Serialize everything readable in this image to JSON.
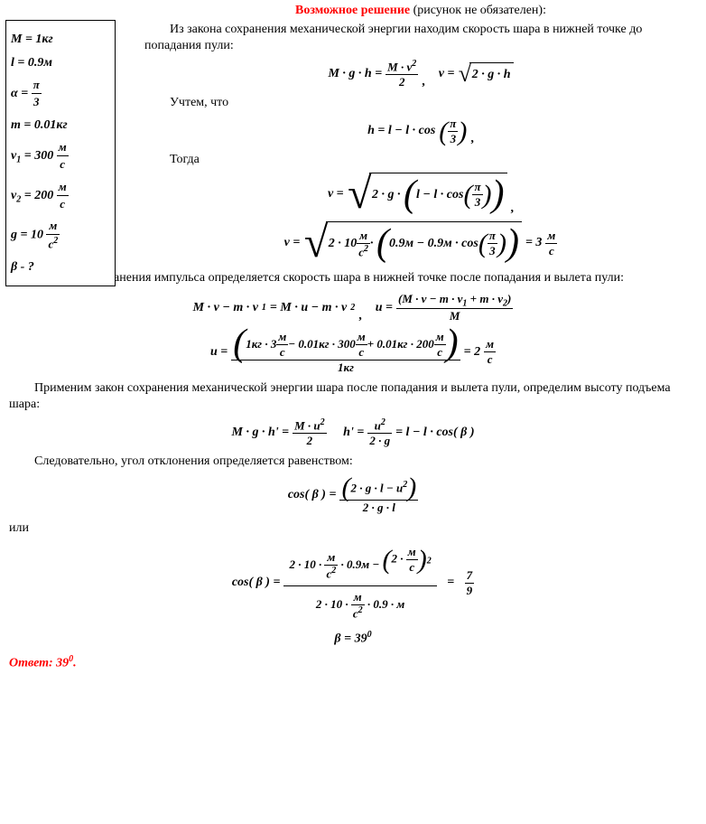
{
  "title": {
    "red": "Возможное решение",
    "rest": " (рисунок не обязателен):"
  },
  "given": {
    "M": "M = 1кг",
    "l": "l = 0.9м",
    "alpha_lhs": "α =",
    "alpha_num": "π",
    "alpha_den": "3",
    "m": "m = 0.01кг",
    "v1_lhs": "v",
    "v1_sub": "1",
    "v1_eq": " = 300 ",
    "v1_num": "м",
    "v1_den": "с",
    "v2_lhs": "v",
    "v2_sub": "2",
    "v2_eq": " = 200 ",
    "v2_num": "м",
    "v2_den": "с",
    "g_lhs": "g = 10 ",
    "g_num": "м",
    "g_den": "с",
    "g_den_sup": "2",
    "beta": "β - ?"
  },
  "text": {
    "p1": "Из закона сохранения механической энергии находим скорость шара в нижней точке до попадания пули:",
    "p2": "Учтем, что",
    "p3": "Тогда",
    "p4": "Из закона сохранения импульса определяется скорость шара в нижней точке после попадания и вылета пули:",
    "p5": "Применим закон сохранения механической энергии шара после попадания и вылета пули, определим высоту подъема шара:",
    "p6": "Следовательно, угол отклонения определяется равенством:",
    "p7": "или"
  },
  "eq": {
    "e1_l": "M · g · h =",
    "e1_num": "M · v",
    "e1_num_sup": "2",
    "e1_den": "2",
    "e1_r": "v =",
    "e1_sqrt": "2 · g · h",
    "e2_l": "h = l − l · cos",
    "e2_num": "π",
    "e2_den": "3",
    "e3_l": "v =",
    "e3_in1": "2 · g ·",
    "e3_in2": "l − l · cos",
    "e3_in2_num": "π",
    "e3_in2_den": "3",
    "e4_l": "v =",
    "e4_a": "2 · 10",
    "e4_u_num": "м",
    "e4_u_den": "с",
    "e4_u_sup": "2",
    "e4_mid": " ·",
    "e4_b": "0.9м − 0.9м · cos",
    "e4_b_num": "π",
    "e4_b_den": "3",
    "e4_res": "= 3 ",
    "e4_res_num": "м",
    "e4_res_den": "с",
    "e5a": "M · v − m · v",
    "e5a_s1": "1",
    "e5a_mid": " = M · u − m · v",
    "e5a_s2": "2",
    "e5b_l": "u =",
    "e5b_num_a": "(M · v − m · v",
    "e5b_num_s1": "1",
    "e5b_num_b": " + m · v",
    "e5b_num_s2": "2",
    "e5b_num_c": ")",
    "e5b_den": "M",
    "e6_l": "u =",
    "e6_num_a": "1кг · 3 ",
    "e6_num_b": " − 0.01кг · 300 ",
    "e6_num_c": " + 0.01кг · 200 ",
    "e6_u_num": "м",
    "e6_u_den": "с",
    "e6_den": "1кг",
    "e6_res": "= 2 ",
    "e7_l": "M · g · h' =",
    "e7_num": "M · u",
    "e7_num_sup": "2",
    "e7_den": "2",
    "e7b_l": "h' =",
    "e7b_num": "u",
    "e7b_num_sup": "2",
    "e7b_den": "2 · g",
    "e7c": " = l − l · cos( β )",
    "e8_l": "cos( β ) =",
    "e8_num": "2 · g · l − u",
    "e8_num_sup": "2",
    "e8_den": "2 · g · l",
    "e9_l": "cos( β ) =",
    "e9_num_a": "2 · 10 ·",
    "e9_num_b": " · 0.9м −",
    "e9_num_c": "2 · ",
    "e9_num_sup": "2",
    "e9_den_a": "2 · 10 ·",
    "e9_den_b": " · 0.9 · м",
    "e9_u_num": "м",
    "e9_u_den": "с",
    "e9_u_sup": "2",
    "e9_res_num": "7",
    "e9_res_den": "9",
    "e9_res_eq": "=",
    "e10": "β = 39",
    "e10_sup": "0"
  },
  "answer": {
    "label": "Ответ: 39",
    "sup": "0",
    "dot": "."
  }
}
